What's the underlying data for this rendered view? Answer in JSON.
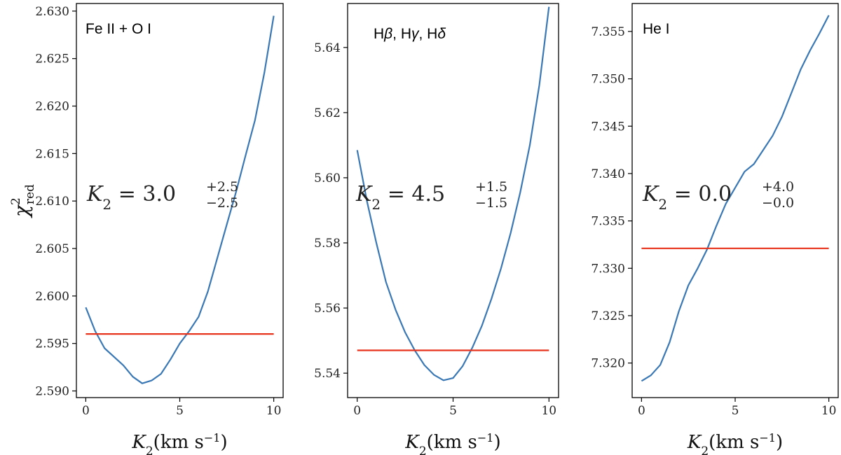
{
  "chart_data": [
    {
      "type": "line",
      "title": "Fe II + O I",
      "xlabel": "K₂(km s⁻¹)",
      "ylabel": "χ²red",
      "annotation": {
        "main": "K₂ = 3.0",
        "sup": "+2.5",
        "sub": "−2.5"
      },
      "xlim": [
        -0.5,
        10.5
      ],
      "ylim": [
        2.5893,
        2.6308
      ],
      "xticks": [
        0,
        5,
        10
      ],
      "xtick_labels": [
        "0",
        "5",
        "10"
      ],
      "yticks": [
        2.59,
        2.595,
        2.6,
        2.605,
        2.61,
        2.615,
        2.62,
        2.625,
        2.63
      ],
      "ytick_labels": [
        "2.590",
        "2.595",
        "2.600",
        "2.605",
        "2.610",
        "2.615",
        "2.620",
        "2.625",
        "2.630"
      ],
      "series": [
        {
          "color": "#3a78b5",
          "x": [
            0,
            0.5,
            1,
            1.5,
            2,
            2.5,
            3,
            3.5,
            4,
            4.5,
            5,
            5.5,
            6,
            6.5,
            7,
            7.5,
            8,
            8.5,
            9,
            9.5,
            10
          ],
          "y": [
            2.5988,
            2.5963,
            2.5945,
            2.5936,
            2.5927,
            2.5915,
            2.5908,
            2.5911,
            2.5918,
            2.5933,
            2.595,
            2.5963,
            2.5978,
            2.6005,
            2.604,
            2.6075,
            2.611,
            2.6148,
            2.6185,
            2.6235,
            2.6295
          ]
        },
        {
          "color": "#e8331c",
          "x": [
            0,
            10
          ],
          "y": [
            2.596,
            2.596
          ]
        }
      ]
    },
    {
      "type": "line",
      "title": "Hβ, Hγ, Hδ",
      "xlabel": "K₂(km s⁻¹)",
      "annotation": {
        "main": "K₂ = 4.5",
        "sup": "+1.5",
        "sub": "−1.5"
      },
      "xlim": [
        -0.5,
        10.5
      ],
      "ylim": [
        5.5325,
        5.6535
      ],
      "xticks": [
        0,
        5,
        10
      ],
      "xtick_labels": [
        "0",
        "5",
        "10"
      ],
      "yticks": [
        5.54,
        5.56,
        5.58,
        5.6,
        5.62,
        5.64
      ],
      "ytick_labels": [
        "5.54",
        "5.56",
        "5.58",
        "5.60",
        "5.62",
        "5.64"
      ],
      "series": [
        {
          "color": "#3a78b5",
          "x": [
            0,
            0.5,
            1,
            1.5,
            2,
            2.5,
            3,
            3.5,
            4,
            4.5,
            5,
            5.5,
            6,
            6.5,
            7,
            7.5,
            8,
            8.5,
            9,
            9.5,
            10
          ],
          "y": [
            5.6085,
            5.593,
            5.58,
            5.568,
            5.5595,
            5.5525,
            5.547,
            5.5425,
            5.5395,
            5.5378,
            5.5385,
            5.5422,
            5.5478,
            5.5545,
            5.5628,
            5.5722,
            5.583,
            5.5955,
            5.61,
            5.6285,
            5.6525
          ]
        },
        {
          "color": "#e8331c",
          "x": [
            0,
            10
          ],
          "y": [
            5.547,
            5.547
          ]
        }
      ]
    },
    {
      "type": "line",
      "title": "He I",
      "xlabel": "K₂(km s⁻¹)",
      "annotation": {
        "main": "K₂ = 0.0",
        "sup": "+4.0",
        "sub": "−0.0"
      },
      "xlim": [
        -0.5,
        10.5
      ],
      "ylim": [
        7.31635,
        7.35795
      ],
      "xticks": [
        0,
        5,
        10
      ],
      "xtick_labels": [
        "0",
        "5",
        "10"
      ],
      "yticks": [
        7.32,
        7.325,
        7.33,
        7.335,
        7.34,
        7.345,
        7.35,
        7.355
      ],
      "ytick_labels": [
        "7.320",
        "7.325",
        "7.330",
        "7.335",
        "7.340",
        "7.345",
        "7.350",
        "7.355"
      ],
      "series": [
        {
          "color": "#3a78b5",
          "x": [
            0,
            0.5,
            1,
            1.5,
            2,
            2.5,
            3,
            3.5,
            4,
            4.5,
            5,
            5.5,
            6,
            6.5,
            7,
            7.5,
            8,
            8.5,
            9,
            9.5,
            10
          ],
          "y": [
            7.3181,
            7.3187,
            7.3198,
            7.3222,
            7.3255,
            7.3282,
            7.33,
            7.332,
            7.3345,
            7.3368,
            7.3385,
            7.3402,
            7.341,
            7.3425,
            7.344,
            7.346,
            7.3485,
            7.351,
            7.353,
            7.3548,
            7.3567
          ]
        },
        {
          "color": "#e8331c",
          "x": [
            0,
            10
          ],
          "y": [
            7.3321,
            7.3321
          ]
        }
      ]
    }
  ]
}
